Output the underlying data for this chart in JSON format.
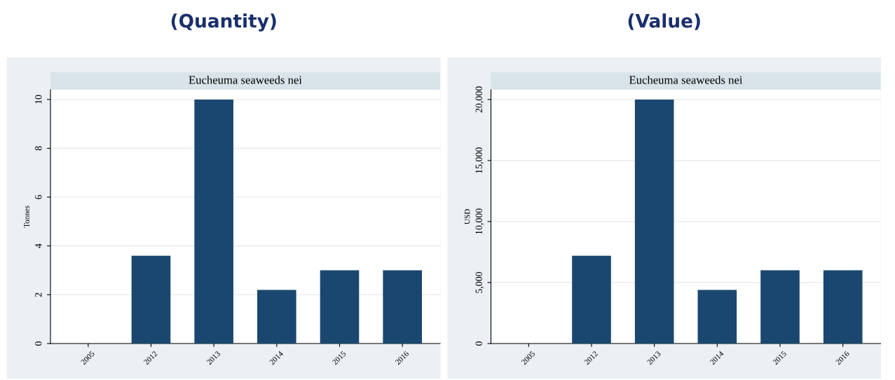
{
  "chart_data": [
    {
      "type": "bar",
      "title": "(Quantity)",
      "subtitle": "Eucheuma seaweeds nei",
      "ylabel": "Tonnes",
      "categories": [
        "2005",
        "2012",
        "2013",
        "2014",
        "2015",
        "2016"
      ],
      "values": [
        0,
        3.6,
        10,
        2.2,
        3,
        3
      ],
      "color": "#1a476f",
      "ylim": [
        0,
        10.4
      ],
      "yticks": [
        0,
        2,
        4,
        6,
        8,
        10
      ],
      "grid": "y"
    },
    {
      "type": "bar",
      "title": "(Value)",
      "subtitle": "Eucheuma seaweeds nei",
      "ylabel": "USD",
      "categories": [
        "2005",
        "2012",
        "2013",
        "2014",
        "2015",
        "2016"
      ],
      "values": [
        0,
        7200,
        20000,
        4400,
        6000,
        6000
      ],
      "color": "#1a476f",
      "ylim": [
        0,
        20800
      ],
      "yticks": [
        0,
        {
          "value": 5000,
          "label": "5,000"
        },
        {
          "value": 10000,
          "label": "10,000"
        },
        {
          "value": 15000,
          "label": "15,000"
        },
        {
          "value": 20000,
          "label": "20,000"
        }
      ],
      "grid": "y"
    }
  ]
}
